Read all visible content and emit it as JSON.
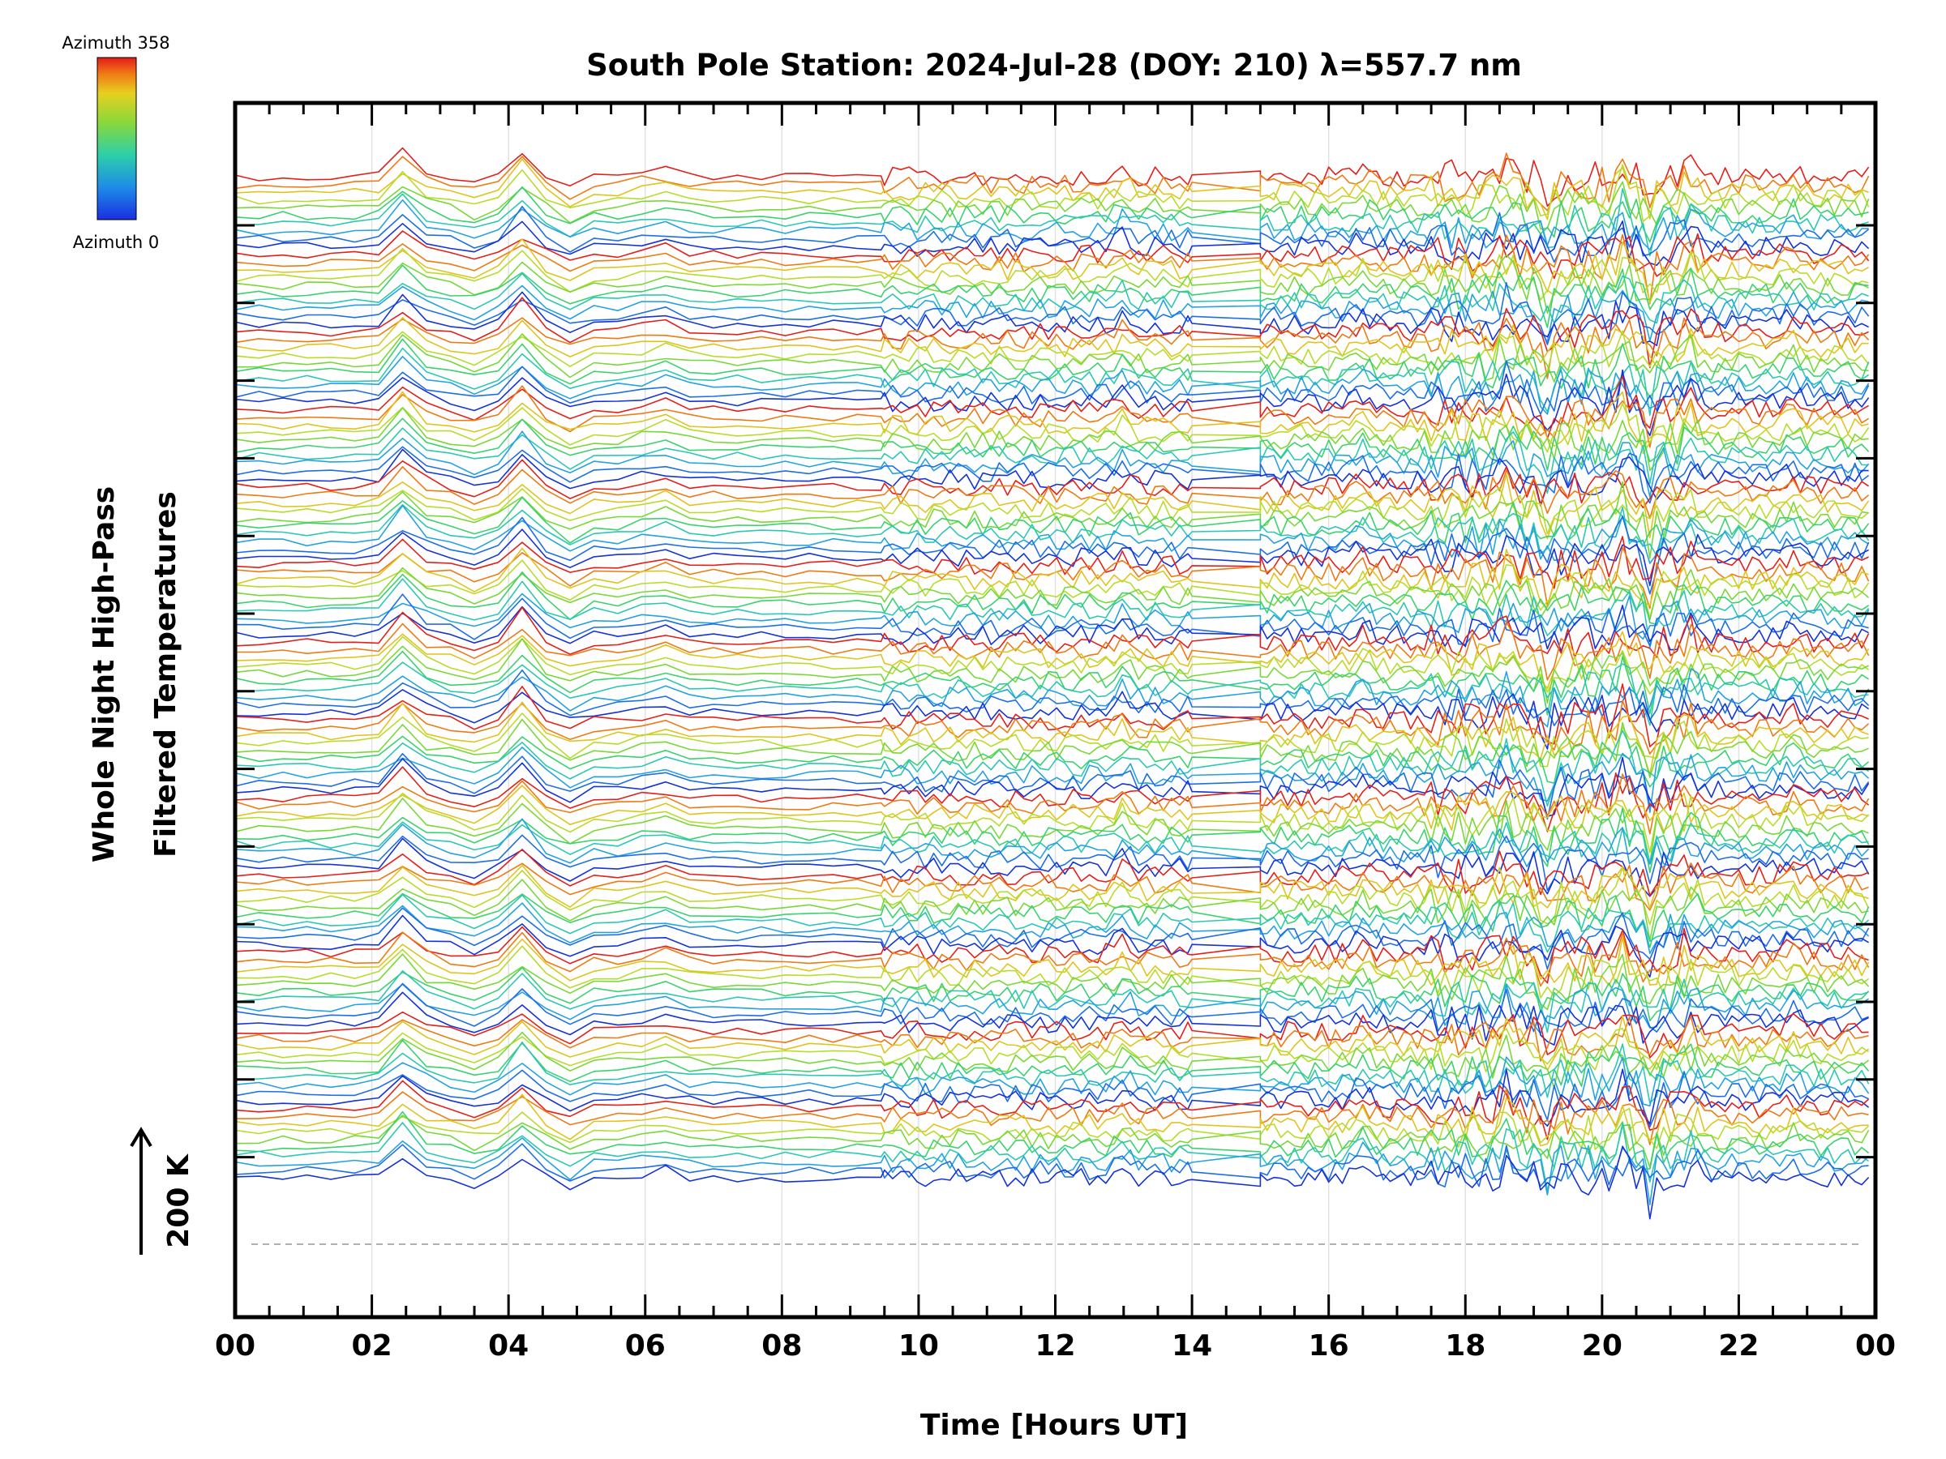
{
  "chart_data": {
    "type": "line",
    "title": "South Pole Station: 2024-Jul-28 (DOY: 210) λ=557.7 nm",
    "xlabel": "Time [Hours UT]",
    "ylabel_line1": "Whole Night High-Pass",
    "ylabel_line2": "Filtered Temperatures",
    "xlim": [
      0,
      24
    ],
    "x_tick_labels": [
      "00",
      "02",
      "04",
      "06",
      "08",
      "10",
      "12",
      "14",
      "16",
      "18",
      "20",
      "22",
      "00"
    ],
    "y_stack_groups": 13,
    "traces_per_group": 10,
    "scale_bar_label": "200 K",
    "colorbar": {
      "top_label": "Azimuth 358",
      "bottom_label": "Azimuth 0",
      "azimuth_min": 0,
      "azimuth_max": 358
    },
    "line_colors": [
      "#1533d6",
      "#1e6fe6",
      "#25a3e0",
      "#2cc8b4",
      "#3bd26e",
      "#79d838",
      "#b8dc2a",
      "#e0c41e",
      "#ee7a14",
      "#e3201a"
    ],
    "baseline_color": "#b0b0b0"
  }
}
